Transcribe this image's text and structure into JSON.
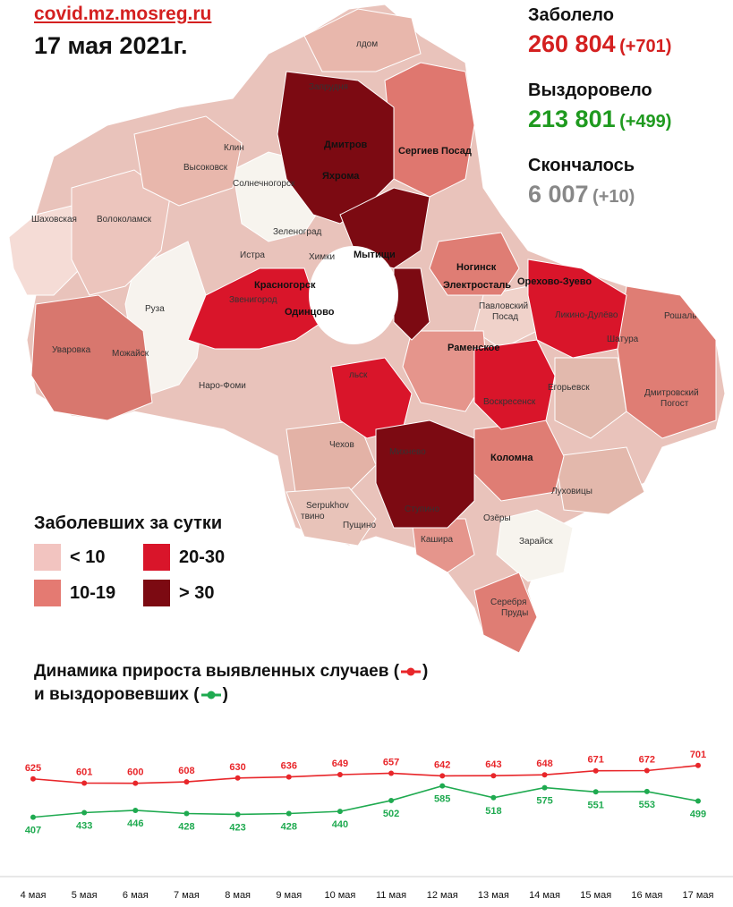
{
  "header": {
    "site": "covid.mz.mosreg.ru",
    "date": "17 мая 2021г."
  },
  "stats": {
    "sick": {
      "label": "Заболело",
      "value": "260 804",
      "delta": "(+701)",
      "color": "#d42020"
    },
    "recovered": {
      "label": "Выздоровело",
      "value": "213 801",
      "delta": "(+499)",
      "color": "#1f9a1f"
    },
    "died": {
      "label": "Скончалось",
      "value": "6 007",
      "delta": "(+10)",
      "color": "#888888"
    }
  },
  "legend": {
    "title": "Заболевших за сутки",
    "items": [
      {
        "label": "< 10",
        "color": "#f2c4c0"
      },
      {
        "label": "10-19",
        "color": "#e47a72"
      },
      {
        "label": "20-30",
        "color": "#d9152a"
      },
      {
        "label": "> 30",
        "color": "#7c0a12"
      }
    ]
  },
  "map_labels": {
    "dmitrov": "Дмитров",
    "yakhroma": "Яхрома",
    "sergiev": "Сергиев Посад",
    "klin": "Клин",
    "vysokovsk": "Высоковск",
    "solnech": "Солнечногорск",
    "shakhovskaya": "Шаховская",
    "volokolamsk": "Волоколамск",
    "zelenograd": "Зеленоград",
    "istra": "Истра",
    "khimki": "Химки",
    "mytishchi": "Мытищи",
    "noginsk": "Ногинск",
    "elektrostal": "Электросталь",
    "orekhovo": "Орехово-Зуево",
    "likino": "Ликино-Дулёво",
    "pavlovsky": "Павловский",
    "posad": "Посад",
    "krasnogorsk": "Красногорск",
    "zvenigorod": "Звенигород",
    "odintsovo": "Одинцово",
    "ruza": "Руза",
    "uvarovka": "Уваровка",
    "mozhaysk": "Можайск",
    "naro": "Наро-Фоми",
    "ramenskoe": "Раменское",
    "roshal": "Рошаль",
    "shatura": "Шатура",
    "egorievsk": "Егорьевск",
    "voskresensk": "Воскресенск",
    "dmitr_pogost1": "Дмитровский",
    "dmitr_pogost2": "Погост",
    "podolsk": "льск",
    "chekhov": "Чехов",
    "mikhnevo": "Михнево",
    "kolomna": "Коломна",
    "serpukhov": "Serpukhov",
    "pushchino": "Пущино",
    "protvino": "твино",
    "stupino": "Ступино",
    "ozery": "Озёры",
    "lukhovitsy": "Луховицы",
    "kashira": "Кашира",
    "zaraysk": "Зарайск",
    "serebr1": "Серебря",
    "serebr2": "Пруды",
    "taldom": "лдом",
    "zapr": "Запрудня"
  },
  "dynamics": {
    "title_line1": "Динамика прироста выявленных случаев (",
    "title_line1_end": ")",
    "title_line2": "и выздоровевших (",
    "title_line2_end": ")"
  },
  "chart_data": {
    "type": "line",
    "categories": [
      "4 мая",
      "5 мая",
      "6 мая",
      "7 мая",
      "8 мая",
      "9 мая",
      "10 мая",
      "11 мая",
      "12 мая",
      "13 мая",
      "14 мая",
      "15 мая",
      "16 мая",
      "17 мая"
    ],
    "series": [
      {
        "values": [
          625,
          601,
          600,
          608,
          630,
          636,
          649,
          657,
          642,
          643,
          648,
          671,
          672,
          701
        ],
        "color": "#e8262a"
      },
      {
        "values": [
          407,
          433,
          446,
          428,
          423,
          428,
          440,
          502,
          585,
          518,
          575,
          551,
          553,
          499
        ],
        "color": "#1faa50"
      }
    ]
  }
}
